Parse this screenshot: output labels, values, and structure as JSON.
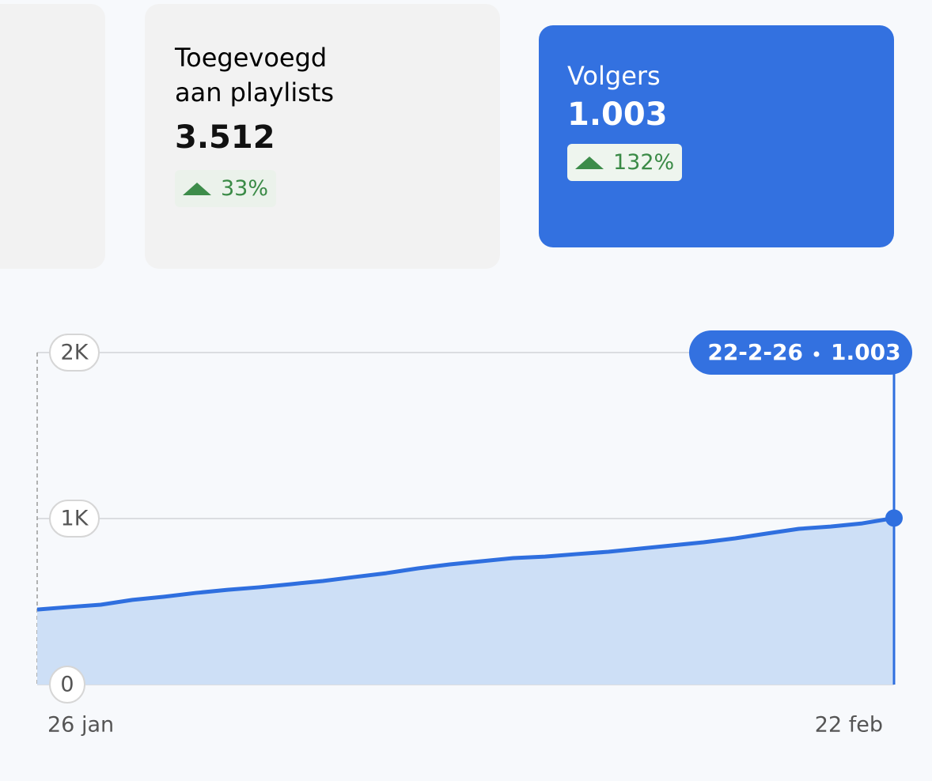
{
  "cards": [
    {
      "title": "Toegevoegd aan playlists",
      "value": "3.512",
      "change": "33%"
    },
    {
      "title": "Volgers",
      "value": "1.003",
      "change": "132%"
    }
  ],
  "chart_data": {
    "type": "area",
    "categories": [
      "26 jan",
      null,
      null,
      null,
      null,
      null,
      null,
      null,
      null,
      null,
      null,
      null,
      null,
      null,
      null,
      null,
      null,
      null,
      null,
      null,
      null,
      null,
      null,
      null,
      null,
      null,
      null,
      "22 feb"
    ],
    "values": [
      452,
      467,
      481,
      510,
      529,
      552,
      571,
      586,
      605,
      624,
      648,
      671,
      700,
      724,
      743,
      762,
      771,
      786,
      800,
      819,
      838,
      857,
      881,
      910,
      938,
      952,
      971,
      1003
    ],
    "color": "#2f6fdf",
    "fill": "#cddff6",
    "ylim": [
      0,
      2000
    ],
    "yticks": [
      0,
      {
        "value": 1000,
        "label": "1K"
      },
      {
        "value": 2000,
        "label": "2K"
      }
    ],
    "grid": true,
    "tooltip": {
      "date": "22-2-26",
      "value_label": "1.003"
    }
  }
}
